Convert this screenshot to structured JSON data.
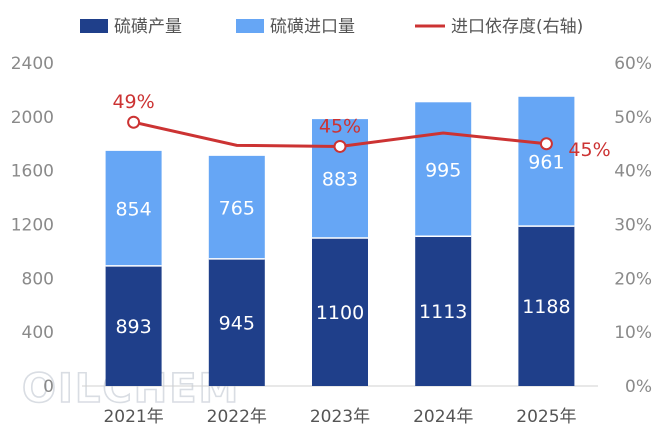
{
  "chart_data": {
    "type": "bar",
    "categories": [
      "2021年",
      "2022年",
      "2023年",
      "2024年",
      "2025年"
    ],
    "series": [
      {
        "name": "硫磺产量",
        "kind": "bar",
        "color": "#1f3f8a",
        "values": [
          893,
          945,
          1100,
          1113,
          1188
        ]
      },
      {
        "name": "硫磺进口量",
        "kind": "bar",
        "color": "#66a6f5",
        "values": [
          854,
          765,
          883,
          995,
          961
        ]
      },
      {
        "name": "进口依存度(右轴)",
        "kind": "line",
        "color": "#cc3333",
        "values": [
          49,
          44.7,
          44.5,
          47,
          45
        ]
      }
    ],
    "rate_labels": [
      {
        "index": 0,
        "text": "49%"
      },
      {
        "index": 2,
        "text": "45%"
      },
      {
        "index": 4,
        "text": "45%"
      }
    ],
    "left_axis": {
      "ylim": [
        0,
        2400
      ],
      "ticks": [
        "0",
        "400",
        "800",
        "1200",
        "1600",
        "2000",
        "2400"
      ]
    },
    "right_axis": {
      "ylim": [
        0,
        60
      ],
      "ticks": [
        "0%",
        "10%",
        "20%",
        "30%",
        "40%",
        "50%",
        "60%"
      ]
    },
    "legend_position": "top"
  },
  "watermark": "OILCHEM"
}
